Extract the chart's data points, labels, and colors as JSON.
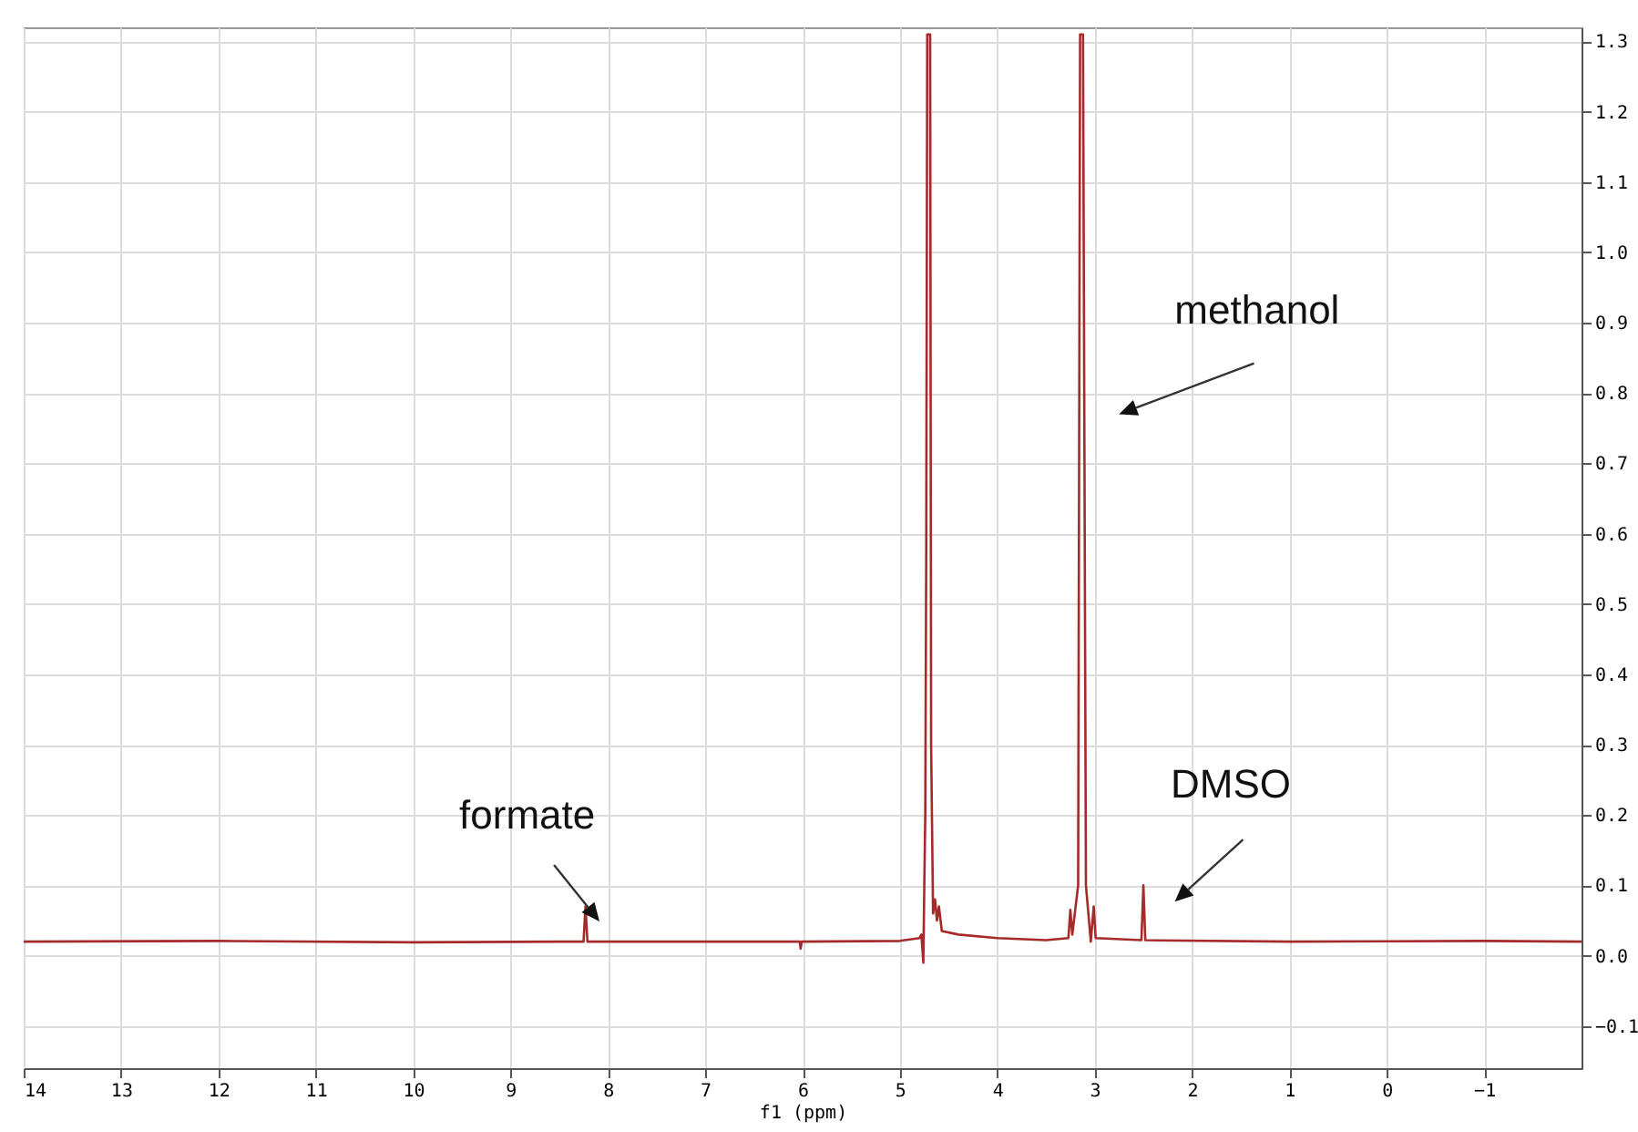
{
  "chart_data": {
    "type": "line",
    "xlabel": "f1 (ppm)",
    "x": [
      14.0,
      12.0,
      10.0,
      8.5,
      8.25,
      8.23,
      8.21,
      7.0,
      6.03,
      6.02,
      6.01,
      5.0,
      4.8,
      4.78,
      4.76,
      4.75,
      4.74,
      4.73,
      4.72,
      4.69,
      4.68,
      4.66,
      4.64,
      4.62,
      4.6,
      4.57,
      4.4,
      4.0,
      3.5,
      3.27,
      3.25,
      3.23,
      3.17,
      3.15,
      3.12,
      3.09,
      3.04,
      3.01,
      2.99,
      2.52,
      2.5,
      2.48,
      1.0,
      -1.0,
      -2.0
    ],
    "series": [
      {
        "color": "#a52a2a",
        "values": [
          0.02,
          0.021,
          0.019,
          0.02,
          0.02,
          0.07,
          0.02,
          0.02,
          0.02,
          0.01,
          0.02,
          0.021,
          0.025,
          0.03,
          -0.01,
          0.1,
          0.2,
          0.58,
          1.31,
          1.31,
          0.3,
          0.06,
          0.08,
          0.05,
          0.07,
          0.035,
          0.03,
          0.025,
          0.022,
          0.025,
          0.065,
          0.03,
          0.1,
          1.31,
          1.31,
          0.1,
          0.02,
          0.07,
          0.025,
          0.022,
          0.1,
          0.022,
          0.02,
          0.021,
          0.02
        ]
      }
    ],
    "xlim": [
      14,
      -2
    ],
    "xticks": [
      14,
      13,
      12,
      11,
      10,
      9,
      8,
      7,
      6,
      5,
      4,
      3,
      2,
      1,
      0,
      -1
    ],
    "ylim": [
      -0.16,
      1.32
    ],
    "yticks": [
      -0.1,
      {
        "value": 0,
        "label": "0.0"
      },
      0.1,
      0.2,
      0.3,
      0.4,
      0.5,
      0.6,
      0.7,
      0.8,
      0.9,
      {
        "value": 1,
        "label": "1.0"
      },
      1.1,
      1.2,
      1.3
    ],
    "grid": true,
    "legend": false,
    "marker": "none",
    "line_style": "solid",
    "annotations": [
      {
        "text": "formate",
        "x": 8.23,
        "y": 0.07
      },
      {
        "text": "methanol",
        "x": 3.11,
        "y": 0.8
      },
      {
        "text": "DMSO",
        "x": 2.5,
        "y": 0.1
      }
    ]
  }
}
